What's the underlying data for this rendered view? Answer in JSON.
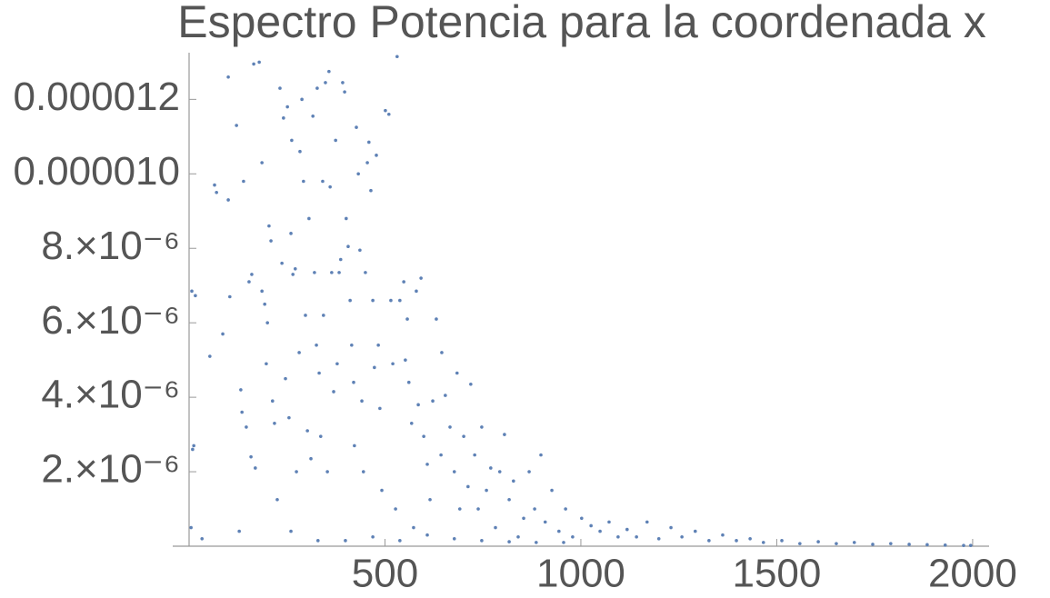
{
  "chart_data": {
    "type": "scatter",
    "title": "Espectro Potencia para la coordenada x",
    "color": "#5e81b5",
    "xlim": [
      0,
      2042
    ],
    "ylim": [
      0,
      1.34e-05
    ],
    "xticks": [
      500,
      1000,
      1500,
      2000
    ],
    "yticks": [
      {
        "value": 2e-06,
        "label": "2.×10⁻⁶"
      },
      {
        "value": 4e-06,
        "label": "4.×10⁻⁶"
      },
      {
        "value": 6e-06,
        "label": "6.×10⁻⁶"
      },
      {
        "value": 8e-06,
        "label": "8.×10⁻⁶"
      },
      {
        "value": 1e-05,
        "label": "0.000010"
      },
      {
        "value": 1.2e-05,
        "label": "0.000012"
      }
    ],
    "x": [
      7,
      16,
      9,
      12,
      5,
      33,
      53,
      65,
      70,
      86,
      100,
      100,
      104,
      121,
      128,
      132,
      135,
      139,
      146,
      153,
      158,
      160,
      165,
      169,
      179,
      186,
      186,
      193,
      197,
      200,
      204,
      209,
      213,
      218,
      225,
      232,
      237,
      241,
      246,
      251,
      255,
      260,
      262,
      265,
      271,
      274,
      281,
      283,
      288,
      292,
      297,
      302,
      306,
      311,
      316,
      320,
      325,
      327,
      332,
      336,
      341,
      343,
      348,
      353,
      357,
      360,
      364,
      369,
      374,
      378,
      383,
      387,
      392,
      397,
      401,
      406,
      411,
      415,
      420,
      422,
      427,
      432,
      436,
      441,
      445,
      450,
      455,
      459,
      464,
      469,
      473,
      478,
      483,
      487,
      492,
      501,
      510,
      515,
      520,
      527,
      531,
      538,
      548,
      552,
      557,
      561,
      568,
      573,
      580,
      585,
      592,
      599,
      608,
      615,
      622,
      631,
      643,
      645,
      654,
      666,
      677,
      684,
      691,
      701,
      712,
      719,
      729,
      738,
      747,
      759,
      770,
      782,
      793,
      805,
      817,
      828,
      840,
      854,
      868,
      882,
      898,
      909,
      926,
      944,
      961,
      979,
      1002,
      1026,
      1049,
      1072,
      1095,
      1118,
      1142,
      1169,
      1199,
      1230,
      1258,
      1292,
      1327,
      1362,
      1397,
      1432,
      1466,
      1513,
      1559,
      1606,
      1652,
      1698,
      1745,
      1791,
      1838,
      1884,
      1930,
      1977,
      1995,
      260,
      329,
      399,
      469,
      538,
      608,
      677,
      747,
      817,
      886,
      956
    ],
    "values": [
      6.85e-06,
      6.73e-06,
      2.6e-06,
      2.7e-06,
      5e-07,
      2e-07,
      5.1e-06,
      9.7e-06,
      9.5e-06,
      5.7e-06,
      9.3e-06,
      1.26e-05,
      6.7e-06,
      1.13e-05,
      4e-07,
      4.2e-06,
      3.6e-06,
      9.8e-06,
      3.2e-06,
      7.1e-06,
      2.4e-06,
      7.3e-06,
      1.295e-05,
      2.1e-06,
      1.3e-05,
      1.03e-05,
      6.85e-06,
      6.5e-06,
      4.9e-06,
      6e-06,
      8.6e-06,
      8.2e-06,
      3.9e-06,
      3.3e-06,
      1.25e-06,
      1.23e-05,
      7.6e-06,
      1.15e-05,
      4.5e-06,
      1.18e-05,
      3.45e-06,
      8.4e-06,
      1.09e-05,
      7.3e-06,
      7.45e-06,
      2e-06,
      5.2e-06,
      1.06e-05,
      1.2e-05,
      9.8e-06,
      6.2e-06,
      3.1e-06,
      8.8e-06,
      2.35e-06,
      1.155e-05,
      7.35e-06,
      5.4e-06,
      1.23e-05,
      4.65e-06,
      2.95e-06,
      9.8e-06,
      6.2e-06,
      1.245e-05,
      2e-06,
      1.275e-05,
      9.65e-06,
      7.35e-06,
      4.15e-06,
      1.09e-05,
      4.9e-06,
      7.35e-06,
      7.7e-06,
      1.245e-05,
      1.22e-05,
      8.8e-06,
      8.05e-06,
      6.6e-06,
      5.4e-06,
      4.4e-06,
      2.7e-06,
      1.125e-05,
      1e-05,
      7.95e-06,
      3.9e-06,
      2e-06,
      7.35e-06,
      1.03e-05,
      1.085e-05,
      9.55e-06,
      6.6e-06,
      4.8e-06,
      1.05e-05,
      5.4e-06,
      3.7e-06,
      1.5e-06,
      1.17e-05,
      1.16e-05,
      6.6e-06,
      4.9e-06,
      1e-06,
      1.315e-05,
      6.6e-06,
      7.1e-06,
      5e-06,
      6.1e-06,
      4.4e-06,
      3.3e-06,
      5e-07,
      6.85e-06,
      3.8e-06,
      7.2e-06,
      2.95e-06,
      2.2e-06,
      1.25e-06,
      3.9e-06,
      6.1e-06,
      2.45e-06,
      5.2e-06,
      4.05e-06,
      3.2e-06,
      2e-06,
      4.65e-06,
      1e-06,
      2.95e-06,
      1.6e-06,
      4.35e-06,
      2.45e-06,
      1e-06,
      3.2e-06,
      1.5e-06,
      2.1e-06,
      5e-07,
      2e-06,
      3e-06,
      1.25e-06,
      1.75e-06,
      2.5e-07,
      7.5e-07,
      2e-06,
      1e-06,
      2.45e-06,
      6.5e-07,
      1.5e-06,
      4e-07,
      1e-06,
      2.5e-07,
      7.5e-07,
      5.5e-07,
      4e-07,
      6.5e-07,
      2.5e-07,
      4.5e-07,
      2.5e-07,
      6.5e-07,
      2e-07,
      5e-07,
      2.5e-07,
      4e-07,
      1.5e-07,
      3e-07,
      1.5e-07,
      2e-07,
      1e-07,
      1.5e-07,
      7e-08,
      1.2e-07,
      7e-08,
      1e-07,
      5e-08,
      7e-08,
      5e-08,
      4e-08,
      3e-08,
      2e-08,
      2e-08,
      4e-07,
      1.5e-07,
      1.5e-07,
      2.5e-07,
      1.5e-07,
      3e-07,
      2e-07,
      1.5e-07,
      1.2e-07,
      1e-07,
      1e-07
    ]
  }
}
